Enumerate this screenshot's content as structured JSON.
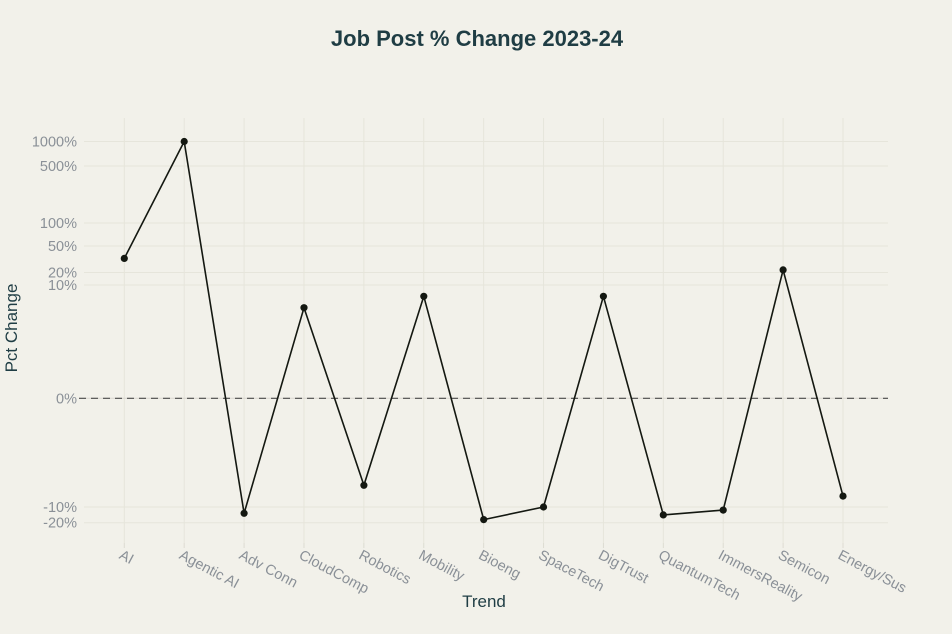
{
  "page": {
    "background_color": "#f2f1ea"
  },
  "chart_data": {
    "type": "line",
    "title": "Job Post % Change 2023-24",
    "xlabel": "Trend",
    "ylabel": "Pct Change",
    "categories": [
      "AI",
      "Agentic AI",
      "Adv Conn",
      "CloudComp",
      "Robotics",
      "Mobility",
      "Bioeng",
      "SpaceTech",
      "DigTrust",
      "QuantumTech",
      "ImmersReality",
      "Semicon",
      "Energy/Sus"
    ],
    "values": [
      36,
      1000,
      -14,
      8,
      -8,
      9,
      -18,
      -10,
      9,
      -15,
      -12,
      23,
      -9
    ],
    "ytick_labels": [
      "1000%",
      "500%",
      "100%",
      "50%",
      "20%",
      "10%",
      "0%",
      "-10%",
      "-20%"
    ],
    "ytick_values": [
      1000,
      500,
      100,
      50,
      20,
      10,
      0,
      -10,
      -20
    ],
    "y_scale": "symlog",
    "grid": true,
    "legend": "none",
    "zero_line": "dashed",
    "marker": "circle",
    "colors": {
      "background": "#f2f1ea",
      "line": "#141811",
      "marker": "#141811",
      "title": "#1f3d44",
      "axis_title": "#1f3d44",
      "tick_label": "#8a9097",
      "gridline": "#e6e5db",
      "tick_stub": "#dddcd2",
      "zero_line": "#4b4b4b",
      "zero_line_under": "#d9d8cf"
    }
  }
}
